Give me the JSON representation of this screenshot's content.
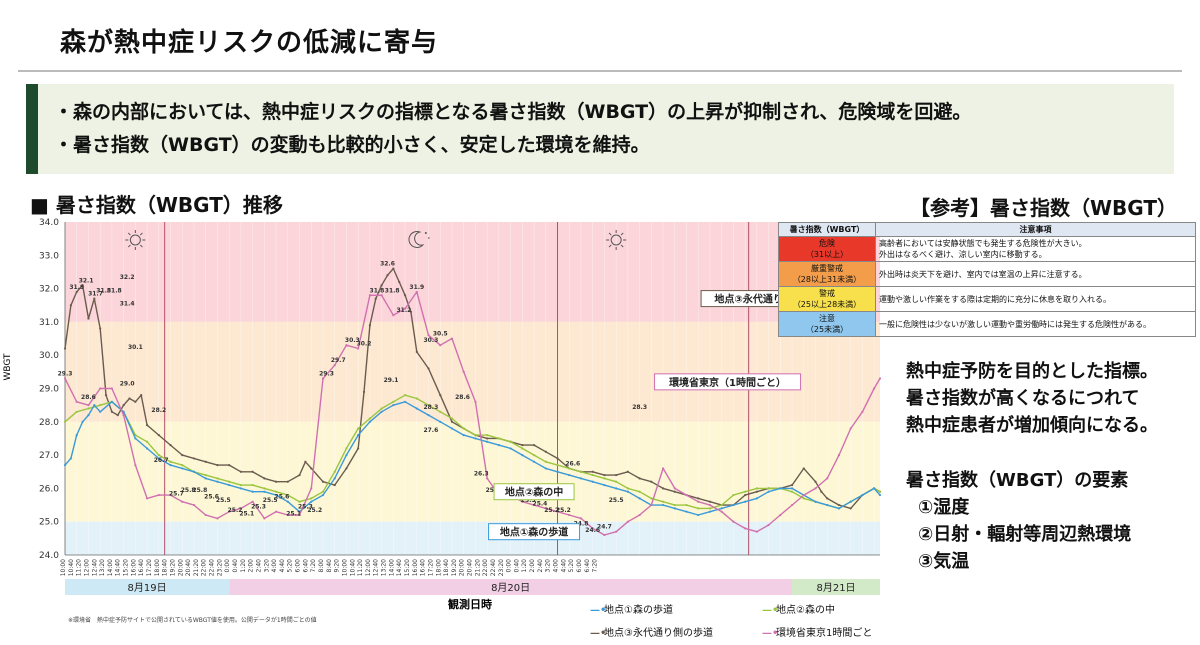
{
  "title": "森が熱中症リスクの低減に寄与",
  "summary": {
    "line1": "・森の内部においては、熱中症リスクの指標となる暑さ指数（WBGT）の上昇が抑制され、危険域を回避。",
    "line2": "・暑さ指数（WBGT）の変動も比較的小さく、安定した環境を維持。"
  },
  "chart_heading": "■ 暑さ指数（WBGT）推移",
  "reference": {
    "title": "【参考】暑さ指数（WBGT）",
    "head_level": "暑さ指数（WBGT）",
    "head_note": "注意事項",
    "rows": [
      {
        "level": "危険",
        "range": "（31以上）",
        "color": "#e8382a",
        "note1": "高齢者においては安静状態でも発生する危険性が大きい。",
        "note2": "外出はなるべく避け、涼しい室内に移動する。"
      },
      {
        "level": "厳重警戒",
        "range": "（28以上31未満）",
        "color": "#f39c4a",
        "note1": "外出時は炎天下を避け、室内では室温の上昇に注意する。",
        "note2": ""
      },
      {
        "level": "警戒",
        "range": "（25以上28未満）",
        "color": "#f7e04b",
        "note1": "運動や激しい作業をする際は定期的に充分に休息を取り入れる。",
        "note2": ""
      },
      {
        "level": "注意",
        "range": "（25未満）",
        "color": "#8fc7ee",
        "note1": "一般に危険性は少ないが激しい運動や重労働時には発生する危険性がある。",
        "note2": ""
      }
    ]
  },
  "description": [
    "熱中症予防を目的とした指標。",
    "暑さ指数が高くなるにつれて",
    "熱中症患者が増加傾向になる。"
  ],
  "elements": {
    "title": "暑さ指数（WBGT）の要素",
    "items": [
      "①湿度",
      "②日射・輻射等周辺熱環境",
      "③気温"
    ]
  },
  "source_note": "※環境省　熱中症予防サイトで公開されているWBGT値を使用。公開データが1時間ごとの値",
  "legend_items": [
    {
      "label": "地点①森の歩道",
      "symbol": "—•",
      "color": "#3a9ad9"
    },
    {
      "label": "地点②森の中",
      "symbol": "—•",
      "color": "#9bc53d"
    },
    {
      "label": "地点③永代通り側の歩道",
      "symbol": "—•",
      "color": "#6b5b4e"
    },
    {
      "label": "環境省東京1時間ごと",
      "symbol": "—•",
      "color": "#d070b0"
    }
  ],
  "chart_data": {
    "type": "line",
    "ylabel": "WBGT",
    "xlabel": "観測日時",
    "ylim": [
      24.0,
      34.0
    ],
    "yticks": [
      "24.0",
      "25.0",
      "26.0",
      "27.0",
      "28.0",
      "29.0",
      "30.0",
      "31.0",
      "32.0",
      "33.0",
      "34.0"
    ],
    "xlim": [
      10,
      79.5
    ],
    "x_unit": "hours from 8月19日 0:00",
    "days": [
      {
        "label": "8月19日",
        "start": 10,
        "end": 24,
        "color": "#cde9f5"
      },
      {
        "label": "8月20日",
        "start": 24,
        "end": 72,
        "color": "#f3cfe6"
      },
      {
        "label": "8月21日",
        "start": 72,
        "end": 79.5,
        "color": "#d2eac8"
      }
    ],
    "bands": [
      {
        "from": 31,
        "to": 34,
        "color": "#fbd5da"
      },
      {
        "from": 28,
        "to": 31,
        "color": "#fde8d2"
      },
      {
        "from": 25,
        "to": 28,
        "color": "#fdf7d6"
      },
      {
        "from": 24,
        "to": 25,
        "color": "#e3f1f8"
      }
    ],
    "day_night_lines": [
      18.5,
      52,
      68.3
    ],
    "weather_icons": [
      {
        "x": 16,
        "type": "sun"
      },
      {
        "x": 40,
        "type": "moon"
      },
      {
        "x": 57,
        "type": "sun"
      },
      {
        "x": 74,
        "type": "moon"
      }
    ],
    "x_tick_labels": [
      "10:00",
      "10:40",
      "11:20",
      "12:00",
      "12:40",
      "13:20",
      "14:00",
      "14:40",
      "15:20",
      "16:00",
      "16:40",
      "17:20",
      "18:00",
      "18:40",
      "19:20",
      "20:00",
      "20:40",
      "21:20",
      "22:00",
      "22:40",
      "23:20",
      "0:00",
      "0:40",
      "1:20",
      "2:00",
      "2:40",
      "3:20",
      "4:00",
      "4:40",
      "5:20",
      "6:00",
      "6:40",
      "7:20",
      "8:00",
      "8:40",
      "9:20",
      "10:00",
      "10:40",
      "11:20",
      "12:00",
      "12:40",
      "13:20",
      "14:00",
      "14:40",
      "15:20",
      "16:00",
      "16:40",
      "17:20",
      "18:00",
      "18:40",
      "19:20",
      "20:00",
      "20:40",
      "21:20",
      "22:00",
      "22:40",
      "23:20",
      "0:00",
      "0:40",
      "1:20",
      "2:00",
      "2:40",
      "3:20",
      "4:00",
      "4:40",
      "5:20",
      "6:00",
      "6:40",
      "7:20"
    ],
    "callouts": [
      {
        "text": "地点③永代通り側の歩道",
        "x": 70,
        "y": 31.7,
        "color": "#6b5b4e"
      },
      {
        "text": "環境省東京（1時間ごと）",
        "x": 66.5,
        "y": 29.2,
        "color": "#d070b0"
      },
      {
        "text": "地点②森の中",
        "x": 50,
        "y": 25.9,
        "color": "#9bc53d"
      },
      {
        "text": "地点①森の歩道",
        "x": 50,
        "y": 24.7,
        "color": "#3a9ad9"
      }
    ],
    "series": [
      {
        "name": "地点③永代通り側の歩道",
        "color": "#6b5b4e",
        "x": [
          10,
          10.5,
          11,
          11.5,
          12,
          12.5,
          13,
          13.5,
          14,
          14.5,
          15,
          15.5,
          16,
          16.5,
          17,
          18,
          19,
          20,
          21,
          22,
          23,
          24,
          25,
          26,
          27,
          28,
          29,
          30,
          30.5,
          31,
          32,
          33,
          34,
          35,
          35.5,
          36,
          36.5,
          37,
          37.5,
          38,
          38.5,
          39,
          39.5,
          40,
          41,
          42,
          43,
          44,
          45,
          46,
          47,
          48,
          49,
          50,
          51,
          52,
          53,
          54,
          55,
          56,
          57,
          58,
          59,
          60,
          61,
          62,
          63,
          64,
          65,
          66,
          67,
          68,
          69,
          70,
          71,
          72,
          73,
          74,
          74.5,
          75,
          76,
          77,
          78,
          79,
          79.5
        ],
        "values": [
          30.2,
          31.5,
          31.9,
          32.1,
          31.1,
          31.7,
          30.8,
          28.8,
          28.3,
          28.2,
          28.5,
          28.7,
          28.6,
          28.8,
          27.9,
          27.6,
          27.3,
          27.0,
          26.9,
          26.8,
          26.7,
          26.7,
          26.5,
          26.5,
          26.3,
          26.2,
          26.2,
          26.4,
          26.8,
          26.6,
          26.2,
          26.1,
          26.6,
          27.2,
          28.9,
          30.9,
          31.7,
          32.1,
          32.4,
          32.6,
          32.2,
          31.8,
          31.3,
          30.1,
          29.6,
          28.8,
          28.0,
          27.8,
          27.6,
          27.5,
          27.5,
          27.4,
          27.3,
          27.3,
          27.1,
          26.9,
          26.6,
          26.5,
          26.5,
          26.4,
          26.4,
          26.5,
          26.3,
          26.2,
          26.0,
          25.9,
          25.8,
          25.7,
          25.6,
          25.5,
          25.5,
          25.8,
          25.9,
          26.0,
          26.0,
          26.1,
          26.6,
          26.2,
          25.9,
          25.7,
          25.5,
          25.4,
          25.8,
          26.0,
          25.9
        ]
      },
      {
        "name": "地点②森の中",
        "color": "#9bc53d",
        "x": [
          10,
          11,
          12,
          13,
          14,
          15,
          16,
          17,
          18,
          19,
          20,
          21,
          22,
          23,
          24,
          25,
          26,
          27,
          28,
          29,
          30,
          31,
          32,
          33,
          34,
          35,
          36,
          37,
          38,
          39,
          40,
          41,
          42,
          43,
          44,
          45,
          46,
          47,
          48,
          49,
          50,
          51,
          52,
          53,
          54,
          55,
          56,
          57,
          58,
          59,
          60,
          61,
          62,
          63,
          64,
          65,
          66,
          67,
          68,
          69,
          70,
          71,
          72,
          73,
          74,
          75,
          76,
          77,
          78,
          79,
          79.5
        ],
        "values": [
          28.0,
          28.3,
          28.4,
          28.5,
          28.6,
          28.3,
          27.6,
          27.4,
          27.0,
          26.8,
          26.7,
          26.5,
          26.4,
          26.3,
          26.2,
          26.1,
          26.1,
          26.0,
          25.9,
          25.8,
          25.6,
          25.7,
          25.9,
          26.5,
          27.2,
          27.8,
          28.1,
          28.4,
          28.6,
          28.8,
          28.7,
          28.5,
          28.3,
          28.1,
          27.8,
          27.6,
          27.6,
          27.5,
          27.4,
          27.2,
          27.0,
          26.8,
          26.7,
          26.6,
          26.5,
          26.4,
          26.3,
          26.2,
          26.0,
          25.9,
          25.7,
          25.6,
          25.5,
          25.5,
          25.4,
          25.4,
          25.5,
          25.8,
          25.9,
          26.0,
          26.0,
          26.0,
          25.9,
          25.7,
          25.6,
          25.5,
          25.4,
          25.6,
          25.8,
          26.0,
          25.9
        ]
      },
      {
        "name": "地点①森の歩道",
        "color": "#3a9ad9",
        "x": [
          10,
          10.5,
          11,
          11.5,
          12,
          12.5,
          13,
          14,
          15,
          16,
          17,
          18,
          19,
          20,
          21,
          22,
          23,
          24,
          25,
          26,
          27,
          28,
          29,
          30,
          31,
          32,
          33,
          34,
          35,
          36,
          37,
          38,
          39,
          40,
          41,
          42,
          43,
          44,
          45,
          46,
          47,
          48,
          49,
          50,
          51,
          52,
          53,
          54,
          55,
          56,
          57,
          58,
          59,
          60,
          61,
          62,
          63,
          64,
          65,
          66,
          67,
          68,
          69,
          70,
          71,
          72,
          73,
          74,
          75,
          76,
          77,
          78,
          79,
          79.5
        ],
        "values": [
          26.7,
          26.9,
          27.6,
          28.0,
          28.2,
          28.5,
          28.3,
          28.6,
          28.3,
          27.5,
          27.2,
          26.9,
          26.7,
          26.6,
          26.5,
          26.3,
          26.2,
          26.1,
          26.0,
          25.9,
          25.9,
          25.8,
          25.6,
          25.3,
          25.6,
          25.8,
          26.3,
          27.0,
          27.6,
          28.0,
          28.3,
          28.5,
          28.6,
          28.4,
          28.2,
          28.0,
          27.8,
          27.6,
          27.5,
          27.4,
          27.3,
          27.2,
          27.0,
          26.8,
          26.6,
          26.5,
          26.4,
          26.3,
          26.2,
          26.1,
          26.0,
          25.9,
          25.7,
          25.5,
          25.5,
          25.4,
          25.3,
          25.2,
          25.3,
          25.4,
          25.5,
          25.6,
          25.7,
          25.9,
          26.0,
          26.0,
          25.8,
          25.6,
          25.5,
          25.4,
          25.6,
          25.8,
          26.0,
          25.8
        ]
      },
      {
        "name": "環境省東京1時間ごと",
        "color": "#d070b0",
        "x": [
          10,
          11,
          12,
          13,
          14,
          15,
          16,
          17,
          18,
          19,
          20,
          21,
          22,
          23,
          24,
          25,
          26,
          27,
          28,
          29,
          30,
          31,
          32,
          33,
          34,
          35,
          36,
          37,
          38,
          39,
          40,
          41,
          42,
          43,
          44,
          45,
          46,
          47,
          48,
          49,
          50,
          51,
          52,
          53,
          54,
          55,
          56,
          57,
          58,
          59,
          60,
          61,
          62,
          63,
          64,
          65,
          66,
          67,
          68,
          69,
          70,
          71,
          72,
          73,
          74,
          75,
          76,
          77,
          78,
          79,
          79.5
        ],
        "values": [
          29.3,
          28.6,
          28.5,
          29.0,
          29.0,
          28.2,
          26.7,
          25.7,
          25.8,
          25.8,
          25.6,
          25.5,
          25.2,
          25.1,
          25.3,
          25.4,
          25.6,
          25.1,
          25.3,
          25.2,
          25.2,
          26.0,
          29.3,
          29.7,
          30.3,
          30.2,
          31.8,
          31.8,
          31.2,
          31.4,
          31.9,
          30.6,
          30.3,
          30.5,
          29.5,
          28.6,
          26.3,
          25.8,
          25.8,
          25.6,
          25.5,
          25.4,
          25.3,
          25.2,
          25.1,
          24.8,
          24.6,
          24.7,
          25.0,
          25.2,
          25.5,
          26.6,
          26.0,
          25.8,
          25.6,
          25.5,
          25.3,
          25.0,
          24.8,
          24.7,
          24.9,
          25.2,
          25.5,
          25.8,
          26.0,
          26.3,
          27.0,
          27.8,
          28.3,
          29.0,
          29.3
        ]
      }
    ],
    "data_labels": [
      {
        "x": 10,
        "y": 29.3,
        "text": "29.3",
        "series": 3
      },
      {
        "x": 11,
        "y": 31.9,
        "text": "31.9",
        "series": 0
      },
      {
        "x": 11.8,
        "y": 32.1,
        "text": "32.1",
        "series": 0
      },
      {
        "x": 12.6,
        "y": 31.7,
        "text": "31.7",
        "series": 0
      },
      {
        "x": 13.3,
        "y": 31.8,
        "text": "31.8",
        "series": 3
      },
      {
        "x": 14.2,
        "y": 31.8,
        "text": "31.8",
        "series": 3
      },
      {
        "x": 15.3,
        "y": 32.2,
        "text": "32.2",
        "series": 0
      },
      {
        "x": 15.3,
        "y": 31.4,
        "text": "31.4",
        "series": 3
      },
      {
        "x": 16,
        "y": 30.1,
        "text": "30.1",
        "series": 3
      },
      {
        "x": 15.3,
        "y": 29.0,
        "text": "29.0",
        "series": 3
      },
      {
        "x": 12,
        "y": 28.6,
        "text": "28.6",
        "series": 3
      },
      {
        "x": 18,
        "y": 28.2,
        "text": "28.2",
        "series": 3
      },
      {
        "x": 18.2,
        "y": 26.7,
        "text": "26.7",
        "series": 3
      },
      {
        "x": 19.5,
        "y": 25.7,
        "text": "25.7",
        "series": 3
      },
      {
        "x": 20.5,
        "y": 25.8,
        "text": "25.8",
        "series": 3
      },
      {
        "x": 21.5,
        "y": 25.8,
        "text": "25.8",
        "series": 3
      },
      {
        "x": 22.5,
        "y": 25.6,
        "text": "25.6",
        "series": 3
      },
      {
        "x": 23.5,
        "y": 25.5,
        "text": "25.5",
        "series": 3
      },
      {
        "x": 24.5,
        "y": 25.2,
        "text": "25.2",
        "series": 3
      },
      {
        "x": 25.5,
        "y": 25.1,
        "text": "25.1",
        "series": 3
      },
      {
        "x": 26.5,
        "y": 25.3,
        "text": "25.3",
        "series": 3
      },
      {
        "x": 27.5,
        "y": 25.5,
        "text": "25.5",
        "series": 3
      },
      {
        "x": 28.5,
        "y": 25.6,
        "text": "25.6",
        "series": 3
      },
      {
        "x": 29.5,
        "y": 25.1,
        "text": "25.1",
        "series": 3
      },
      {
        "x": 30.5,
        "y": 25.3,
        "text": "25.3",
        "series": 3
      },
      {
        "x": 31.3,
        "y": 25.2,
        "text": "25.2",
        "series": 3
      },
      {
        "x": 32.3,
        "y": 29.3,
        "text": "29.3",
        "series": 3
      },
      {
        "x": 33.3,
        "y": 29.7,
        "text": "29.7",
        "series": 3
      },
      {
        "x": 34.5,
        "y": 30.3,
        "text": "30.3",
        "series": 3
      },
      {
        "x": 35.5,
        "y": 30.2,
        "text": "30.2",
        "series": 3
      },
      {
        "x": 37.5,
        "y": 32.6,
        "text": "32.6",
        "series": 0
      },
      {
        "x": 36.6,
        "y": 31.8,
        "text": "31.8",
        "series": 3
      },
      {
        "x": 37.9,
        "y": 31.8,
        "text": "31.8",
        "series": 3
      },
      {
        "x": 38.9,
        "y": 31.2,
        "text": "31.2",
        "series": 3
      },
      {
        "x": 40,
        "y": 31.9,
        "text": "31.9",
        "series": 3
      },
      {
        "x": 41.2,
        "y": 30.3,
        "text": "30.3",
        "series": 3
      },
      {
        "x": 42,
        "y": 30.5,
        "text": "30.5",
        "series": 3
      },
      {
        "x": 37.8,
        "y": 29.1,
        "text": "29.1",
        "series": 1
      },
      {
        "x": 41.2,
        "y": 28.3,
        "text": "28.3",
        "series": 3
      },
      {
        "x": 43.9,
        "y": 28.6,
        "text": "28.6",
        "series": 3
      },
      {
        "x": 41.2,
        "y": 27.6,
        "text": "27.6",
        "series": 2
      },
      {
        "x": 45.5,
        "y": 26.3,
        "text": "26.3",
        "series": 3
      },
      {
        "x": 46.5,
        "y": 25.8,
        "text": "25.8",
        "series": 3
      },
      {
        "x": 47.5,
        "y": 25.8,
        "text": "25.8",
        "series": 3
      },
      {
        "x": 48.5,
        "y": 25.6,
        "text": "25.6",
        "series": 3
      },
      {
        "x": 49.5,
        "y": 25.5,
        "text": "25.5",
        "series": 3
      },
      {
        "x": 50.5,
        "y": 25.4,
        "text": "25.4",
        "series": 3
      },
      {
        "x": 51.5,
        "y": 25.2,
        "text": "25.2",
        "series": 3
      },
      {
        "x": 52.5,
        "y": 25.2,
        "text": "25.2",
        "series": 3
      },
      {
        "x": 53.3,
        "y": 26.6,
        "text": "26.6",
        "series": 0
      },
      {
        "x": 54,
        "y": 24.8,
        "text": "24.8",
        "series": 3
      },
      {
        "x": 55,
        "y": 24.6,
        "text": "24.6",
        "series": 3
      },
      {
        "x": 56,
        "y": 24.7,
        "text": "24.7",
        "series": 3
      },
      {
        "x": 57,
        "y": 25.5,
        "text": "25.5",
        "series": 3
      },
      {
        "x": 59,
        "y": 28.3,
        "text": "28.3",
        "series": 3
      }
    ]
  }
}
